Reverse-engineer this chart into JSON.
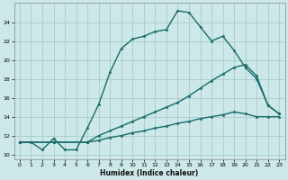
{
  "xlabel": "Humidex (Indice chaleur)",
  "bg_color": "#cce8e8",
  "grid_color": "#aacccc",
  "line_color": "#1a6b6b",
  "xlim": [
    -0.5,
    23.5
  ],
  "ylim": [
    9.5,
    26
  ],
  "xticks": [
    0,
    1,
    2,
    3,
    4,
    5,
    6,
    7,
    8,
    9,
    10,
    11,
    12,
    13,
    14,
    15,
    16,
    17,
    18,
    19,
    20,
    21,
    22,
    23
  ],
  "yticks": [
    10,
    12,
    14,
    16,
    18,
    20,
    22,
    24
  ],
  "series": [
    {
      "x": [
        0,
        1,
        2,
        3,
        4,
        5,
        6,
        7,
        8,
        9,
        10,
        11,
        12,
        13,
        14,
        15,
        16,
        17,
        18,
        19,
        20,
        21,
        22,
        23
      ],
      "y": [
        11.3,
        11.3,
        10.5,
        11.7,
        10.5,
        10.5,
        12.8,
        15.3,
        18.7,
        21.2,
        22.2,
        22.5,
        23.0,
        23.2,
        25.2,
        25.0,
        23.5,
        22.0,
        22.5,
        21.0,
        19.2,
        18.0,
        15.2,
        14.3
      ]
    },
    {
      "x": [
        0,
        3,
        6,
        7,
        8,
        9,
        10,
        11,
        12,
        13,
        14,
        15,
        16,
        17,
        18,
        19,
        20,
        21,
        22,
        23
      ],
      "y": [
        11.3,
        11.3,
        11.3,
        12.0,
        12.5,
        13.0,
        13.5,
        14.0,
        14.5,
        15.0,
        15.5,
        16.2,
        17.0,
        17.8,
        18.5,
        19.2,
        19.5,
        18.3,
        15.2,
        14.3
      ]
    },
    {
      "x": [
        0,
        3,
        6,
        7,
        8,
        9,
        10,
        11,
        12,
        13,
        14,
        15,
        16,
        17,
        18,
        19,
        20,
        21,
        22,
        23
      ],
      "y": [
        11.3,
        11.3,
        11.3,
        11.5,
        11.8,
        12.0,
        12.3,
        12.5,
        12.8,
        13.0,
        13.3,
        13.5,
        13.8,
        14.0,
        14.2,
        14.5,
        14.3,
        14.0,
        14.0,
        14.0
      ]
    }
  ]
}
